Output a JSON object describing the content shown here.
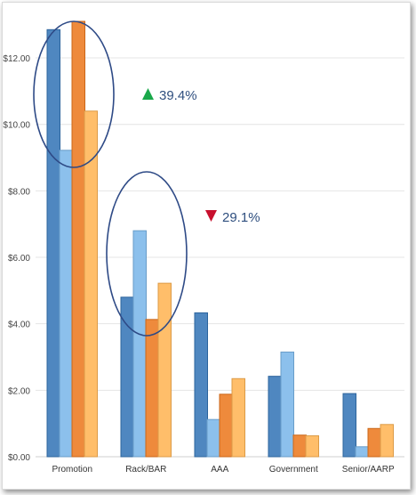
{
  "chart_data": {
    "type": "bar",
    "categories": [
      "Promotion",
      "Rack/BAR",
      "AAA",
      "Government",
      "Senior/AARP"
    ],
    "series": [
      {
        "values": [
          12.85,
          4.8,
          4.33,
          2.42,
          1.9
        ],
        "color": "#4f87c0"
      },
      {
        "values": [
          9.22,
          6.8,
          1.12,
          3.15,
          0.3
        ],
        "color": "#8cc0ec"
      },
      {
        "values": [
          13.1,
          4.13,
          1.88,
          0.65,
          0.85
        ],
        "color": "#ee8a3c"
      },
      {
        "values": [
          10.4,
          5.22,
          2.35,
          0.63,
          0.97
        ],
        "color": "#ffbe6a"
      }
    ],
    "yticks": [
      "$0.00",
      "$2.00",
      "$4.00",
      "$6.00",
      "$8.00",
      "$10.00",
      "$12.00"
    ],
    "ylim": [
      0,
      13.4
    ],
    "grid": true,
    "annotations": [
      {
        "text": "39.4%",
        "direction": "up",
        "color": "#1aa84a"
      },
      {
        "text": "29.1%",
        "direction": "down",
        "color": "#c8102e"
      }
    ],
    "highlight_color": "#2e4a86"
  }
}
